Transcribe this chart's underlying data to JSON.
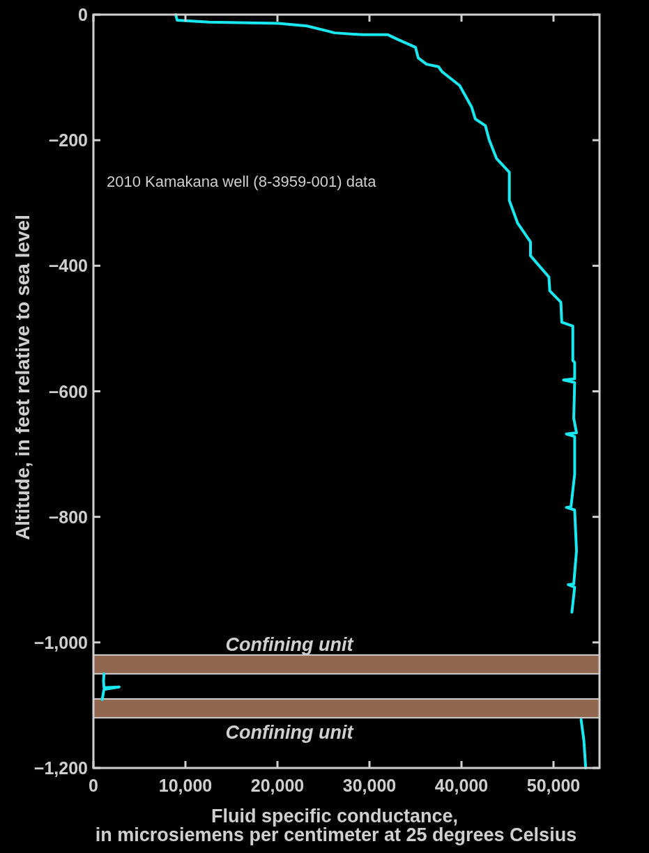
{
  "chart_data": {
    "type": "line",
    "xlabel": "Fluid specific conductance,\nin microsiemens per centimeter at 25 degrees Celsius",
    "ylabel": "Altitude, in feet relative to sea level",
    "annotations": [
      "2010 Kamakana well (8-3959-001) data"
    ],
    "xlim": [
      0,
      55000
    ],
    "xticks": [
      0,
      {
        "value": 10000,
        "label": "10,000"
      },
      {
        "value": 20000,
        "label": "20,000"
      },
      {
        "value": 30000,
        "label": "30,000"
      },
      {
        "value": 40000,
        "label": "40,000"
      },
      {
        "value": 50000,
        "label": "50,000"
      }
    ],
    "ylim": [
      -1200,
      0
    ],
    "yticks": [
      {
        "value": -1200,
        "label": "−1,200"
      },
      {
        "value": -1000,
        "label": "−1,000"
      },
      {
        "value": -800,
        "label": "−800"
      },
      {
        "value": -600,
        "label": "−600"
      },
      {
        "value": -400,
        "label": "−400"
      },
      {
        "value": -200,
        "label": "−200"
      },
      0
    ],
    "grid": false,
    "line_style": "solid",
    "bands": [
      {
        "axis": "y",
        "from": -1050,
        "to": -1020,
        "label": "Confining unit",
        "color": "#926750"
      },
      {
        "axis": "y",
        "from": -1120,
        "to": -1090,
        "label": "Confining unit",
        "color": "#926750"
      }
    ],
    "series": [
      {
        "color": "#19e8f0",
        "x": [
          8950,
          9100,
          12600,
          20100,
          23200,
          25400,
          26200,
          29200,
          32000,
          33000,
          35000,
          35300,
          36200,
          37500,
          37900,
          39800,
          41100,
          41500,
          42600,
          43000,
          43800,
          45200,
          45200,
          46100,
          47500,
          47500,
          49500,
          49600,
          50800,
          50900,
          52100,
          52100,
          52300,
          52300,
          51100,
          52300,
          52200,
          52500,
          51400,
          52300,
          52300,
          51900,
          51400,
          52300,
          52500,
          52200,
          51600,
          52300,
          52000,
          null,
          1150,
          1100,
          1150,
          2800,
          1150,
          950,
          null,
          53000,
          53300,
          53500
        ],
        "values": [
          0,
          -9,
          -12,
          -14,
          -18,
          -26,
          -29,
          -32,
          -32,
          -39,
          -52,
          -69,
          -79,
          -83,
          -91,
          -113,
          -147,
          -166,
          -177,
          -199,
          -229,
          -251,
          -296,
          -332,
          -362,
          -384,
          -418,
          -440,
          -458,
          -490,
          -496,
          -551,
          -554,
          -580,
          -582,
          -586,
          -643,
          -666,
          -668,
          -672,
          -732,
          -784,
          -785,
          -789,
          -854,
          -907,
          -908,
          -912,
          -952,
          null,
          -1050,
          -1062,
          -1072,
          -1071,
          -1075,
          -1091,
          null,
          -1123,
          -1156,
          -1200
        ]
      }
    ]
  }
}
